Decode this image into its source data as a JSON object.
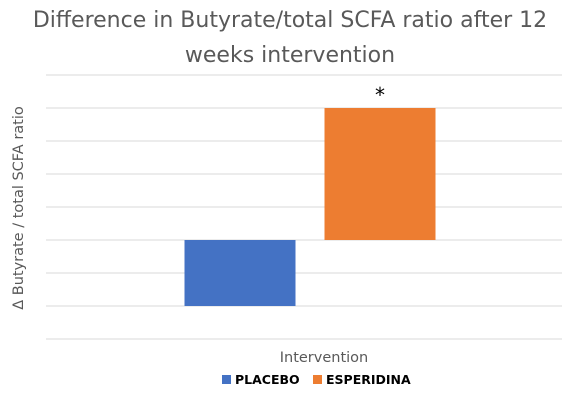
{
  "chart_data": {
    "type": "bar",
    "title_lines": [
      "Difference in Butyrate/total SCFA ratio after 12",
      "weeks intervention"
    ],
    "xlabel": "Intervention",
    "ylabel": "Δ Butyrate / total SCFA ratio",
    "categories": [
      "Intervention"
    ],
    "series": [
      {
        "name": "PLACEBO",
        "values": [
          -2
        ],
        "color": "#4472C4"
      },
      {
        "name": "ESPERIDINA",
        "values": [
          4
        ],
        "color": "#ED7D31"
      }
    ],
    "ylim": [
      -3,
      5
    ],
    "grid": true,
    "tick_labels_shown": false,
    "annotations": [
      {
        "series": "ESPERIDINA",
        "text": "*"
      }
    ],
    "legend_position": "bottom"
  }
}
